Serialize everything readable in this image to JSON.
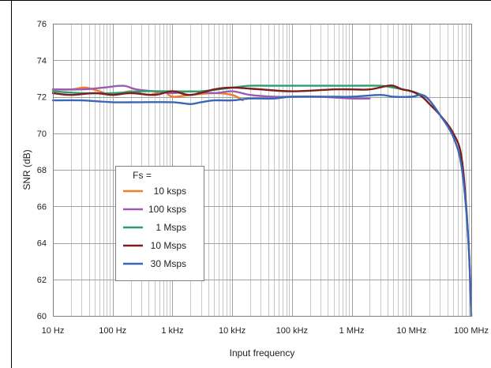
{
  "chart_data": {
    "type": "line",
    "title": "",
    "xlabel": "Input frequency",
    "ylabel": "SNR (dB)",
    "x_scale": "log",
    "xlim": [
      10,
      100000000
    ],
    "ylim": [
      60,
      76
    ],
    "grid": true,
    "x_ticks": [
      {
        "value": 10,
        "label": "10 Hz"
      },
      {
        "value": 100,
        "label": "100 Hz"
      },
      {
        "value": 1000,
        "label": "1 kHz"
      },
      {
        "value": 10000,
        "label": "10 kHz"
      },
      {
        "value": 100000,
        "label": "100 kHz"
      },
      {
        "value": 1000000,
        "label": "1 MHz"
      },
      {
        "value": 10000000,
        "label": "10 MHz"
      },
      {
        "value": 100000000,
        "label": "100 MHz"
      }
    ],
    "y_ticks": [
      {
        "value": 60,
        "label": "60"
      },
      {
        "value": 62,
        "label": "62"
      },
      {
        "value": 64,
        "label": "64"
      },
      {
        "value": 66,
        "label": "66"
      },
      {
        "value": 68,
        "label": "68"
      },
      {
        "value": 70,
        "label": "70"
      },
      {
        "value": 72,
        "label": "72"
      },
      {
        "value": 74,
        "label": "74"
      },
      {
        "value": 76,
        "label": "76"
      }
    ],
    "legend": {
      "title": "Fs =",
      "position": "lower-left"
    },
    "series": [
      {
        "name": "10 ksps",
        "color": "#f07c2c",
        "x": [
          10,
          20,
          35,
          60,
          100,
          200,
          400,
          700,
          1000,
          2000,
          5000,
          10000,
          15000
        ],
        "y": [
          72.4,
          72.4,
          72.5,
          72.3,
          72.1,
          72.3,
          72.1,
          72.3,
          72.0,
          72.1,
          72.2,
          72.1,
          71.8
        ]
      },
      {
        "name": "100 ksps",
        "color": "#9b5bb3",
        "x": [
          10,
          30,
          70,
          150,
          250,
          500,
          1000,
          2000,
          5000,
          10000,
          20000,
          50000,
          100000,
          300000,
          1000000,
          2000000
        ],
        "y": [
          72.4,
          72.4,
          72.5,
          72.6,
          72.4,
          72.3,
          72.2,
          72.3,
          72.2,
          72.3,
          72.1,
          72.0,
          72.0,
          72.0,
          71.9,
          71.9
        ]
      },
      {
        "name": "1 Msps",
        "color": "#2e9e70",
        "x": [
          10,
          30,
          100,
          300,
          1000,
          3000,
          10000,
          20000,
          50000,
          100000,
          300000,
          1000000,
          3000000,
          5000000,
          10000000,
          15000000
        ],
        "y": [
          72.3,
          72.2,
          72.2,
          72.3,
          72.3,
          72.3,
          72.5,
          72.6,
          72.6,
          72.6,
          72.6,
          72.6,
          72.6,
          72.5,
          72.3,
          72.1
        ]
      },
      {
        "name": "10 Msps",
        "color": "#7b1e1e",
        "x": [
          10,
          20,
          50,
          100,
          200,
          500,
          1000,
          2000,
          5000,
          10000,
          30000,
          100000,
          500000,
          1000000,
          2000000,
          4000000,
          5000000,
          7000000,
          10000000,
          15000000,
          20000000,
          30000000,
          50000000,
          70000000,
          90000000,
          100000000
        ],
        "y": [
          72.2,
          72.1,
          72.2,
          72.1,
          72.2,
          72.1,
          72.3,
          72.1,
          72.4,
          72.5,
          72.4,
          72.3,
          72.4,
          72.4,
          72.4,
          72.6,
          72.6,
          72.4,
          72.3,
          72.0,
          71.6,
          71.0,
          70.0,
          68.5,
          64.0,
          60.0
        ]
      },
      {
        "name": "30 Msps",
        "color": "#3a67b8",
        "x": [
          10,
          30,
          100,
          300,
          1000,
          2000,
          3000,
          5000,
          10000,
          20000,
          50000,
          100000,
          500000,
          1000000,
          3000000,
          5000000,
          10000000,
          15000000,
          20000000,
          30000000,
          50000000,
          70000000,
          90000000,
          100000000
        ],
        "y": [
          71.8,
          71.8,
          71.7,
          71.7,
          71.7,
          71.6,
          71.7,
          71.8,
          71.8,
          71.9,
          71.9,
          72.0,
          72.0,
          72.0,
          72.1,
          72.0,
          72.0,
          72.1,
          71.8,
          71.0,
          69.8,
          68.0,
          64.0,
          60.0
        ]
      }
    ]
  }
}
